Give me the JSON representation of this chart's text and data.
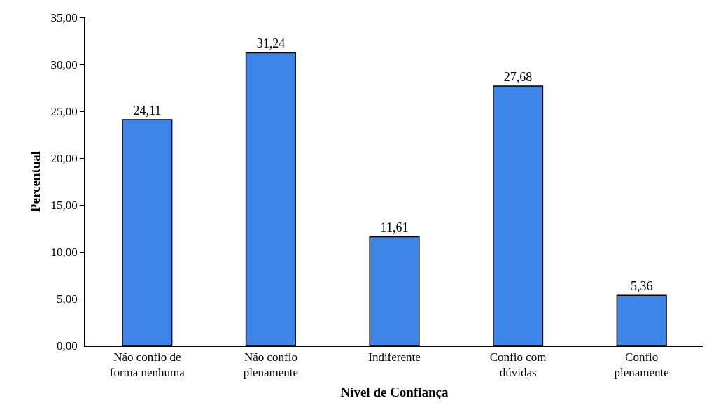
{
  "chart_data": {
    "type": "bar",
    "xlabel": "Nível de Confiança",
    "ylabel": "Percentual",
    "categories": [
      "Não confio de\nforma nenhuma",
      "Não confio\nplenamente",
      "Indiferente",
      "Confio com\ndúvidas",
      "Confio\nplenamente"
    ],
    "values": [
      24.11,
      31.24,
      11.61,
      27.68,
      5.36
    ],
    "value_labels": [
      "24,11",
      "31,24",
      "11,61",
      "27,68",
      "5,36"
    ],
    "color": "#3d85e6",
    "ylim": [
      0,
      35
    ],
    "yticks": [
      {
        "value": 0,
        "label": "0,00"
      },
      {
        "value": 5,
        "label": "5,00"
      },
      {
        "value": 10,
        "label": "10,00"
      },
      {
        "value": 15,
        "label": "15,00"
      },
      {
        "value": 20,
        "label": "20,00"
      },
      {
        "value": 25,
        "label": "25,00"
      },
      {
        "value": 30,
        "label": "30,00"
      },
      {
        "value": 35,
        "label": "35,00"
      }
    ],
    "grid": false
  }
}
